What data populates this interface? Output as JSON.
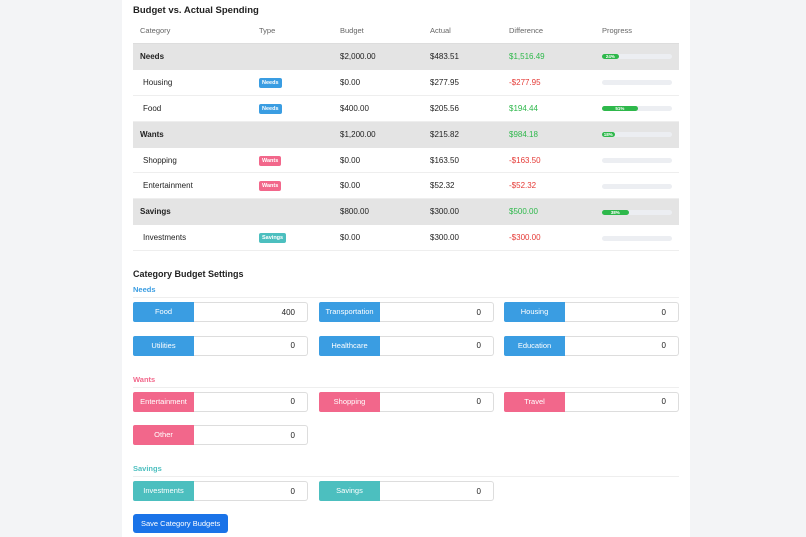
{
  "title": "Budget vs. Actual Spending",
  "table": {
    "headers": [
      "Category",
      "Type",
      "Budget",
      "Actual",
      "Difference",
      "Progress"
    ],
    "rows": [
      {
        "category": "Needs",
        "budget": "$2,000.00",
        "actual": "$483.51",
        "difference": "$1,516.49",
        "progress": {
          "value": 24,
          "label": "24%"
        }
      },
      {
        "category": "Housing",
        "type": "Needs",
        "budget": "$0.00",
        "actual": "$277.95",
        "difference": "-$277.95"
      },
      {
        "category": "Food",
        "type": "Needs",
        "budget": "$400.00",
        "actual": "$205.56",
        "difference": "$194.44",
        "progress": {
          "value": 51,
          "label": "51%"
        }
      },
      {
        "category": "Wants",
        "budget": "$1,200.00",
        "actual": "$215.82",
        "difference": "$984.18",
        "progress": {
          "value": 18,
          "label": "18%"
        }
      },
      {
        "category": "Shopping",
        "type": "Wants",
        "budget": "$0.00",
        "actual": "$163.50",
        "difference": "-$163.50"
      },
      {
        "category": "Entertainment",
        "type": "Wants",
        "budget": "$0.00",
        "actual": "$52.32",
        "difference": "-$52.32"
      },
      {
        "category": "Savings",
        "budget": "$800.00",
        "actual": "$300.00",
        "difference": "$500.00",
        "progress": {
          "value": 38,
          "label": "38%"
        }
      },
      {
        "category": "Investments",
        "type": "Savings",
        "budget": "$0.00",
        "actual": "$300.00",
        "difference": "-$300.00"
      }
    ]
  },
  "settings": {
    "title": "Category Budget Settings",
    "groups": [
      {
        "name": "Needs",
        "items": [
          {
            "label": "Food",
            "value": 400
          },
          {
            "label": "Transportation",
            "value": 0
          },
          {
            "label": "Housing",
            "value": 0
          },
          {
            "label": "Utilities",
            "value": 0
          },
          {
            "label": "Healthcare",
            "value": 0
          },
          {
            "label": "Education",
            "value": 0
          }
        ]
      },
      {
        "name": "Wants",
        "items": [
          {
            "label": "Entertainment",
            "value": 0
          },
          {
            "label": "Shopping",
            "value": 0
          },
          {
            "label": "Travel",
            "value": 0
          },
          {
            "label": "Other",
            "value": 0
          }
        ]
      },
      {
        "name": "Savings",
        "items": [
          {
            "label": "Investments",
            "value": 0
          },
          {
            "label": "Savings",
            "value": 0
          }
        ]
      }
    ],
    "button": "Save Category Budgets"
  }
}
